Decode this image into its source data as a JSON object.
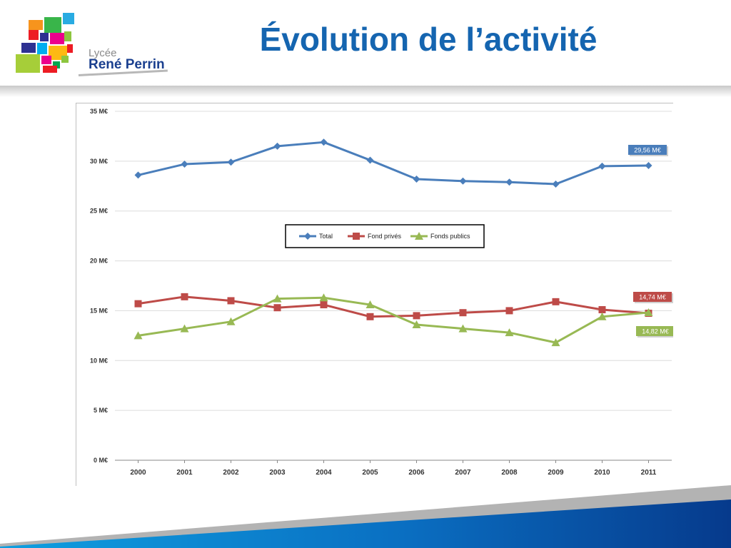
{
  "header": {
    "title": "Évolution de l’activité"
  },
  "logo": {
    "line1": "Lycée",
    "line2": "René Perrin"
  },
  "chart_data": {
    "type": "line",
    "categories": [
      "2000",
      "2001",
      "2002",
      "2003",
      "2004",
      "2005",
      "2006",
      "2007",
      "2008",
      "2009",
      "2010",
      "2011"
    ],
    "ylim": [
      0,
      35
    ],
    "yticks": [
      0,
      5,
      10,
      15,
      20,
      25,
      30,
      35
    ],
    "ytick_labels": [
      "0 M€",
      "5 M€",
      "10 M€",
      "15 M€",
      "20 M€",
      "25 M€",
      "30 M€",
      "35 M€"
    ],
    "grid": true,
    "legend": "top-center",
    "series": [
      {
        "name": "Total",
        "color": "#4a7ebb",
        "marker": "diamond",
        "values": [
          28.6,
          29.7,
          29.9,
          31.5,
          31.9,
          30.1,
          28.2,
          28.0,
          27.9,
          27.7,
          29.5,
          29.56
        ],
        "end_label": "29,56 M€"
      },
      {
        "name": "Fond privés",
        "color": "#be4b48",
        "marker": "square",
        "values": [
          15.7,
          16.4,
          16.0,
          15.3,
          15.6,
          14.4,
          14.5,
          14.8,
          15.0,
          15.9,
          15.1,
          14.74
        ],
        "end_label": "14,74 M€"
      },
      {
        "name": "Fonds publics",
        "color": "#98b954",
        "marker": "triangle",
        "values": [
          12.5,
          13.2,
          13.9,
          16.2,
          16.3,
          15.6,
          13.6,
          13.2,
          12.8,
          11.8,
          14.4,
          14.82
        ],
        "end_label": "14,82 M€"
      }
    ]
  }
}
